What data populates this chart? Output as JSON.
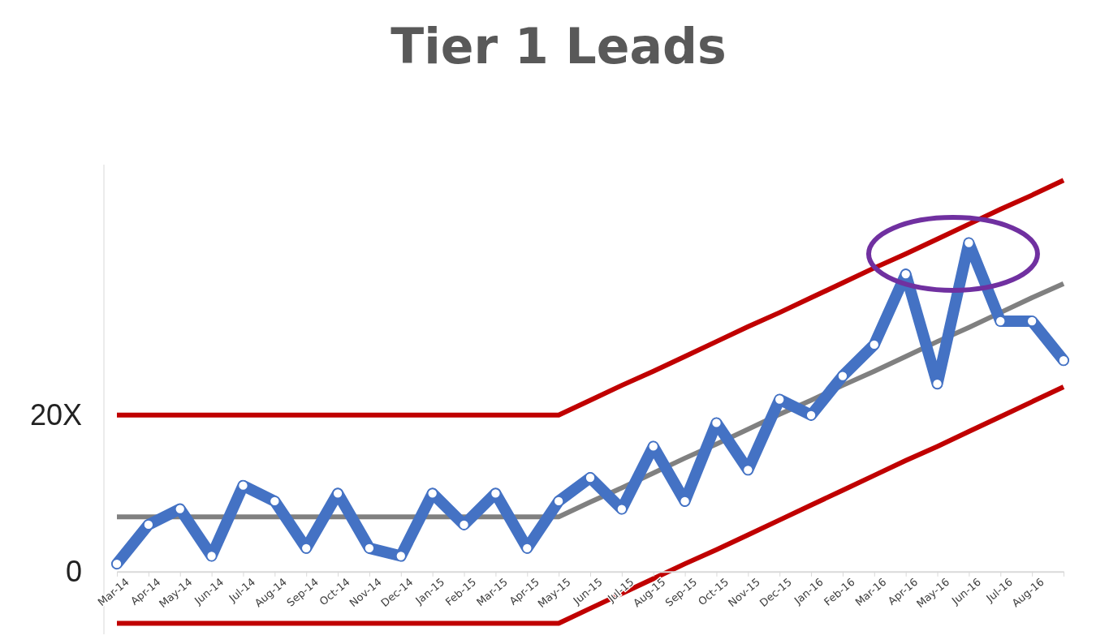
{
  "chart_data": {
    "type": "line",
    "title": "Tier 1 Leads",
    "categories": [
      "Mar-14",
      "Apr-14",
      "May-14",
      "Jun-14",
      "Jul-14",
      "Aug-14",
      "Sep-14",
      "Oct-14",
      "Nov-14",
      "Dec-14",
      "Jan-15",
      "Feb-15",
      "Mar-15",
      "Apr-15",
      "May-15",
      "Jun-15",
      "Jul-15",
      "Aug-15",
      "Sep-15",
      "Oct-15",
      "Nov-15",
      "Dec-15",
      "Jan-16",
      "Feb-16",
      "Mar-16",
      "Apr-16",
      "May-16",
      "Jun-16",
      "Jul-16",
      "Aug-16",
      null
    ],
    "series": [
      {
        "color": "#c00000",
        "marker": "none",
        "values": [
          20,
          20,
          20,
          20,
          20,
          20,
          20,
          20,
          20,
          20,
          20,
          20,
          20,
          20,
          20,
          21.9,
          23.8,
          25.6,
          27.5,
          29.4,
          31.3,
          33.1,
          35,
          36.9,
          38.8,
          40.6,
          42.5,
          44.4,
          46.3,
          48.1,
          50
        ]
      },
      {
        "color": "#c00000",
        "marker": "none",
        "values": [
          -6.6,
          -6.6,
          -6.6,
          -6.6,
          -6.6,
          -6.6,
          -6.6,
          -6.6,
          -6.6,
          -6.6,
          -6.6,
          -6.6,
          -6.6,
          -6.6,
          -6.6,
          -4.7,
          -2.8,
          -0.9,
          1.0,
          2.8,
          4.7,
          6.6,
          8.5,
          10.4,
          12.3,
          14.2,
          16.0,
          17.9,
          19.8,
          21.7,
          23.6
        ]
      },
      {
        "color": "#808080",
        "marker": "none",
        "values": [
          7,
          7,
          7,
          7,
          7,
          7,
          7,
          7,
          7,
          7,
          7,
          7,
          7,
          7,
          7,
          8.9,
          10.7,
          12.6,
          14.5,
          16.3,
          18.2,
          20.1,
          21.9,
          23.8,
          25.6,
          27.5,
          29.4,
          31.2,
          33.1,
          35.0,
          36.8
        ]
      },
      {
        "color": "#4472c4",
        "marker": "circle",
        "values": [
          1,
          6,
          8,
          2,
          11,
          9,
          3,
          10,
          3,
          2,
          10,
          6,
          10,
          3,
          9,
          12,
          8,
          16,
          9,
          19,
          13,
          22,
          20,
          25,
          29,
          38,
          24,
          42,
          32,
          32,
          27
        ]
      }
    ],
    "ylim": [
      -8,
      52
    ],
    "yticks": [
      0,
      {
        "value": 20,
        "label": "20X"
      }
    ],
    "grid": false,
    "line_style": "solid"
  }
}
